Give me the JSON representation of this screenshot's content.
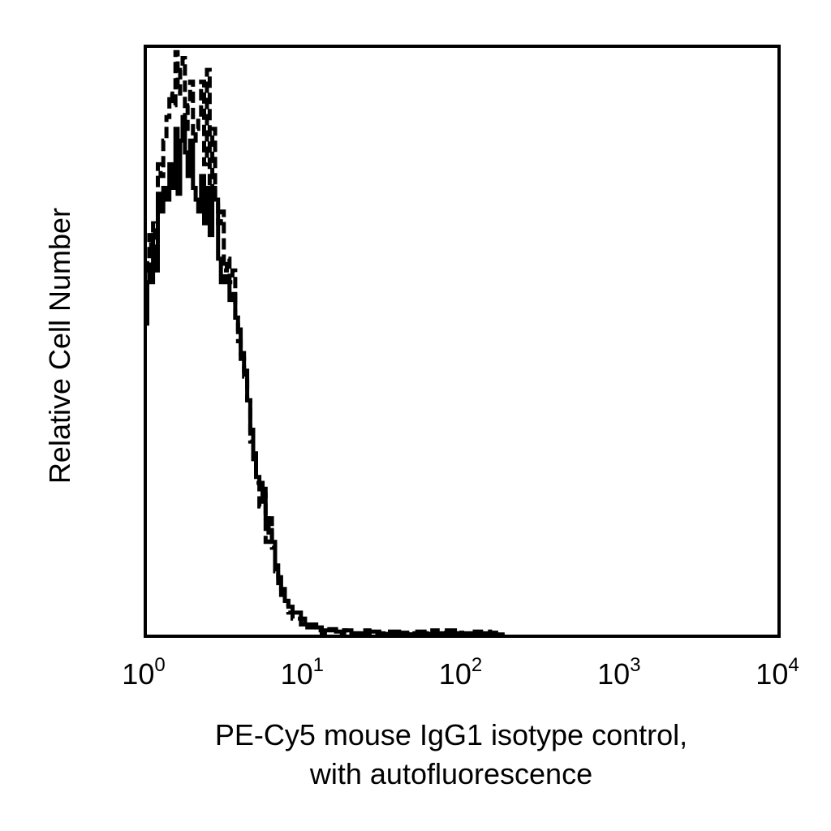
{
  "chart_data": {
    "type": "line",
    "title": "",
    "xlabel_lines": [
      "PE-Cy5 mouse IgG1 isotype control,",
      "with autofluorescence"
    ],
    "ylabel": "Relative Cell Number",
    "x_scale": "log",
    "xlim": [
      1,
      10000
    ],
    "ylim": [
      0,
      100
    ],
    "grid": false,
    "legend": "none",
    "x_ticks": [
      {
        "value": 1,
        "base": "10",
        "exp": "0"
      },
      {
        "value": 10,
        "base": "10",
        "exp": "1"
      },
      {
        "value": 100,
        "base": "10",
        "exp": "2"
      },
      {
        "value": 1000,
        "base": "10",
        "exp": "3"
      },
      {
        "value": 10000,
        "base": "10",
        "exp": "4"
      }
    ],
    "series": [
      {
        "style": "solid",
        "color": "#000000",
        "x": [
          1.0,
          1.03,
          1.06,
          1.09,
          1.12,
          1.15,
          1.2,
          1.25,
          1.3,
          1.36,
          1.42,
          1.48,
          1.55,
          1.6,
          1.66,
          1.72,
          1.78,
          1.85,
          1.92,
          2.0,
          2.08,
          2.16,
          2.25,
          2.35,
          2.45,
          2.55,
          2.65,
          2.76,
          2.88,
          3.0,
          3.13,
          3.27,
          3.4,
          3.55,
          3.7,
          3.85,
          4.0,
          4.2,
          4.4,
          4.6,
          4.8,
          5.0,
          5.25,
          5.5,
          5.75,
          6.0,
          6.3,
          6.6,
          6.9,
          7.2,
          7.6,
          8.0,
          8.5,
          9.0,
          9.6,
          10.2,
          11.0,
          12.0,
          13.0,
          14.5,
          16.0,
          18.0,
          20.0,
          23.0,
          26.0,
          30.0,
          35.0,
          40.0,
          45.0,
          50.0,
          60.0,
          70.0,
          80.0,
          90.0,
          100.0,
          120.0,
          150.0,
          180.0
        ],
        "y": [
          53,
          60,
          63,
          60,
          66,
          62,
          75,
          72,
          76,
          74,
          80,
          76,
          86,
          75,
          84,
          88,
          82,
          78,
          84,
          76,
          74,
          72,
          78,
          70,
          76,
          68,
          76,
          74,
          64,
          60,
          61,
          60,
          57,
          58,
          54,
          52,
          48,
          45,
          40,
          35,
          31,
          27,
          26,
          24,
          20,
          18,
          16,
          12,
          10,
          8,
          6,
          5,
          4,
          4,
          3,
          2,
          2,
          1.5,
          1,
          1,
          0.8,
          1,
          0.5,
          0.5,
          0.8,
          0.4,
          0.5,
          0.6,
          0.3,
          0.5,
          0.4,
          0.5,
          1,
          0.5,
          0.5,
          0.5,
          0.3,
          0.2
        ]
      },
      {
        "style": "dashed",
        "color": "#000000",
        "x": [
          1.0,
          1.03,
          1.06,
          1.09,
          1.12,
          1.15,
          1.2,
          1.25,
          1.3,
          1.36,
          1.42,
          1.48,
          1.55,
          1.6,
          1.66,
          1.72,
          1.78,
          1.85,
          1.92,
          2.0,
          2.08,
          2.16,
          2.25,
          2.35,
          2.45,
          2.55,
          2.65,
          2.76,
          2.88,
          3.0,
          3.13,
          3.27,
          3.4,
          3.55,
          3.7,
          3.85,
          4.0,
          4.2,
          4.4,
          4.6,
          4.8,
          5.0,
          5.25,
          5.5,
          5.75,
          6.0,
          6.3,
          6.6,
          6.9,
          7.2,
          7.6,
          8.0,
          8.5,
          9.0,
          9.6,
          10.2,
          11.0,
          12.0,
          13.0,
          14.5,
          16.0,
          18.0,
          20.0,
          23.0,
          26.0,
          30.0,
          35.0,
          40.0,
          45.0,
          50.0,
          60.0,
          70.0,
          80.0,
          90.0,
          100.0,
          120.0,
          150.0,
          180.0
        ],
        "y": [
          62,
          64,
          68,
          65,
          70,
          66,
          80,
          78,
          84,
          88,
          92,
          90,
          99,
          92,
          96,
          98,
          86,
          90,
          94,
          84,
          86,
          88,
          94,
          80,
          96,
          74,
          86,
          74,
          70,
          72,
          62,
          64,
          60,
          62,
          54,
          50,
          47,
          44,
          40,
          33,
          30,
          26,
          22,
          25,
          16,
          20,
          15,
          11,
          9,
          7,
          6,
          4,
          3,
          3,
          2,
          1.5,
          1.5,
          1,
          0.5,
          1.2,
          0.5,
          1,
          0.5,
          1,
          0.3,
          0.5,
          0.8,
          0.5,
          0.3,
          0.8,
          1,
          0.6,
          0.5,
          0.6,
          0.4,
          0.8,
          0.6,
          0.3
        ]
      }
    ]
  }
}
